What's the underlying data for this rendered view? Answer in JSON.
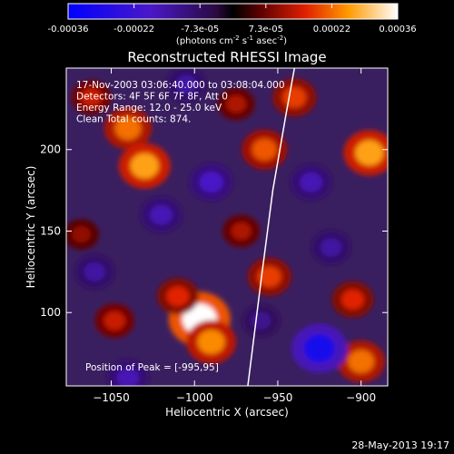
{
  "colorbar": {
    "ticks": [
      "-0.00036",
      "-0.00022",
      "-7.3e-05",
      "7.3e-05",
      "0.00022",
      "0.00036"
    ],
    "units_main": "(photons cm",
    "units_exp1": "-2",
    "units_mid": " s",
    "units_exp2": "-1",
    "units_tail": " asec",
    "units_exp3": "-2",
    "units_close": ")"
  },
  "chart_data": {
    "type": "heatmap",
    "title": "Reconstructed RHESSI Image",
    "xlabel": "Heliocentric X (arcsec)",
    "ylabel": "Heliocentric Y (arcsec)",
    "xlim": [
      -1077,
      -884
    ],
    "ylim": [
      55,
      250
    ],
    "x_ticks": [
      -1050,
      -1000,
      -950,
      -900
    ],
    "y_ticks": [
      100,
      150,
      200
    ],
    "x_tick_labels": [
      "−1050",
      "−1000",
      "−950",
      "−900"
    ],
    "y_tick_labels": [
      "100",
      "150",
      "200"
    ],
    "colorscale_range": [
      -0.00036,
      0.00036
    ],
    "annotations": [
      "17-Nov-2003 03:06:40.000 to 03:08:04.000",
      "Detectors: 4F 5F 6F 7F 8F, Att 0",
      "Energy Range: 12.0 - 25.0 keV",
      "Clean     Total counts: 874."
    ],
    "peak_label": "Position of Peak = [-995,95]",
    "peak": [
      -995,
      95
    ],
    "limb": [
      [
        -968,
        55
      ],
      [
        -960,
        120
      ],
      [
        -953,
        175
      ],
      [
        -945,
        222
      ],
      [
        -940,
        250
      ]
    ],
    "blobs": [
      {
        "x": -997,
        "y": 96,
        "v": 0.00036
      },
      {
        "x": -990,
        "y": 82,
        "v": 0.00024
      },
      {
        "x": -1010,
        "y": 110,
        "v": 0.00016
      },
      {
        "x": -1040,
        "y": 213,
        "v": 0.00022
      },
      {
        "x": -1030,
        "y": 190,
        "v": 0.00026
      },
      {
        "x": -1062,
        "y": 232,
        "v": 0.00014
      },
      {
        "x": -958,
        "y": 200,
        "v": 0.0002
      },
      {
        "x": -940,
        "y": 232,
        "v": 0.00018
      },
      {
        "x": -975,
        "y": 228,
        "v": 0.00012
      },
      {
        "x": -895,
        "y": 198,
        "v": 0.00026
      },
      {
        "x": -905,
        "y": 108,
        "v": 0.00016
      },
      {
        "x": -900,
        "y": 70,
        "v": 0.00022
      },
      {
        "x": -955,
        "y": 122,
        "v": 0.00018
      },
      {
        "x": -1068,
        "y": 148,
        "v": 0.0001
      },
      {
        "x": -1048,
        "y": 95,
        "v": 0.00014
      },
      {
        "x": -972,
        "y": 150,
        "v": 0.00012
      },
      {
        "x": -1020,
        "y": 160,
        "v": -0.00016
      },
      {
        "x": -990,
        "y": 180,
        "v": -0.00018
      },
      {
        "x": -1060,
        "y": 125,
        "v": -0.00014
      },
      {
        "x": -930,
        "y": 180,
        "v": -0.00016
      },
      {
        "x": -925,
        "y": 78,
        "v": -0.0003
      },
      {
        "x": -918,
        "y": 140,
        "v": -0.00014
      },
      {
        "x": -1040,
        "y": 60,
        "v": -0.00016
      },
      {
        "x": -1005,
        "y": 240,
        "v": -0.00014
      },
      {
        "x": -960,
        "y": 95,
        "v": -0.00012
      }
    ]
  },
  "footer": {
    "timestamp": "28-May-2013 19:17"
  }
}
